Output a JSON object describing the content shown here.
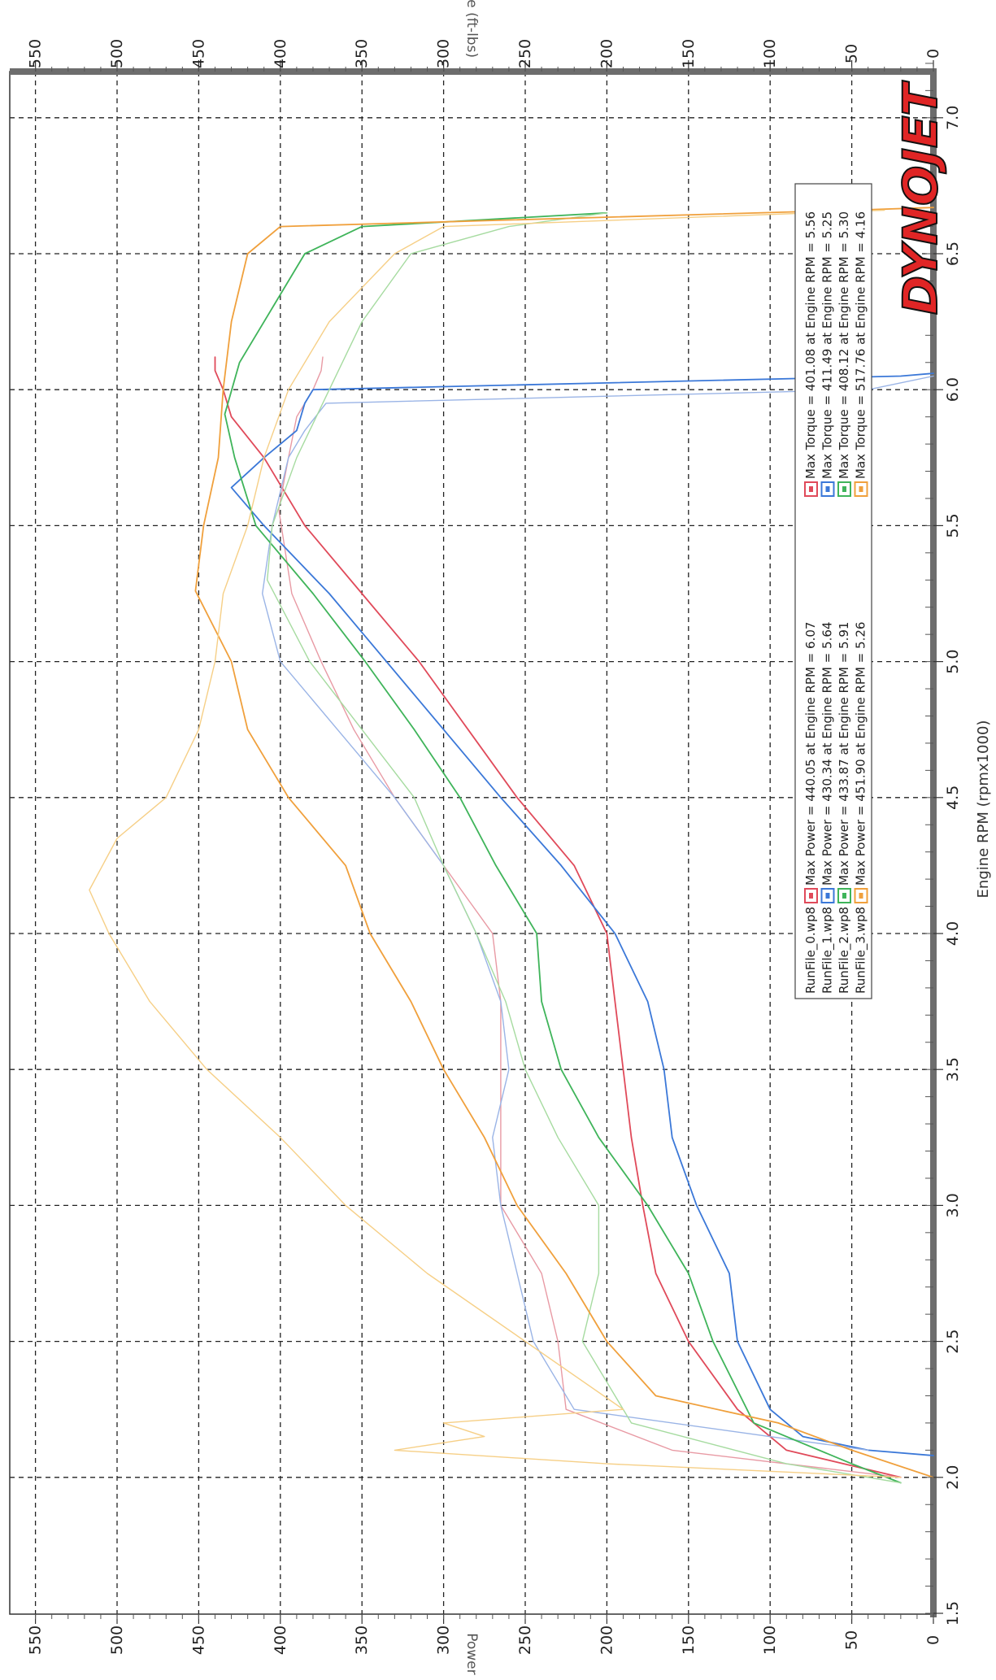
{
  "chart_data": {
    "type": "line",
    "title": "",
    "xlabel": "Engine RPM (rpmx1000)",
    "ylabel_top": "Torque (ft-lbs)",
    "ylabel_bottom": "Power (hp)",
    "x_range": [
      1.5,
      7.2
    ],
    "x_ticks": [
      "1.5",
      "2.0",
      "2.5",
      "3.0",
      "3.5",
      "4.0",
      "4.5",
      "5.0",
      "5.5",
      "6.0",
      "6.5",
      "7.0"
    ],
    "y_range": [
      0,
      560
    ],
    "y_ticks": [
      "0",
      "50",
      "100",
      "150",
      "200",
      "250",
      "300",
      "350",
      "400",
      "450",
      "500",
      "550"
    ],
    "grid": true,
    "orientation": "rotated 90° clockwise (x axis runs down the page)",
    "brand": "DYNOJET",
    "legend": {
      "placement": "right",
      "entries": [
        {
          "file": "RunFile_0.wp8",
          "color": "#e04a5a",
          "power": "Max Power = 440.05 at Engine RPM = 6.07",
          "torque": "Max Torque = 401.08 at Engine RPM = 5.56"
        },
        {
          "file": "RunFile_1.wp8",
          "color": "#3b78d8",
          "power": "Max Power = 430.34 at Engine RPM = 5.64",
          "torque": "Max Torque = 411.49 at Engine RPM = 5.25"
        },
        {
          "file": "RunFile_2.wp8",
          "color": "#3fb45a",
          "power": "Max Power = 433.87 at Engine RPM = 5.91",
          "torque": "Max Torque = 408.12 at Engine RPM = 5.30"
        },
        {
          "file": "RunFile_3.wp8",
          "color": "#f0a03c",
          "power": "Max Power = 451.90 at Engine RPM = 5.26",
          "torque": "Max Torque = 517.76 at Engine RPM = 4.16"
        }
      ]
    },
    "series": [
      {
        "name": "RunFile_0.wp8",
        "measure": "power",
        "color": "#e04a5a",
        "x": [
          2.0,
          2.1,
          2.25,
          2.5,
          2.75,
          3.0,
          3.25,
          3.5,
          3.75,
          4.0,
          4.25,
          4.5,
          4.75,
          5.0,
          5.25,
          5.5,
          5.75,
          5.9,
          6.0,
          6.07,
          6.12
        ],
        "y": [
          20,
          90,
          120,
          150,
          170,
          178,
          185,
          190,
          195,
          200,
          220,
          255,
          285,
          315,
          350,
          385,
          410,
          430,
          435,
          440,
          440
        ]
      },
      {
        "name": "RunFile_0.wp8",
        "measure": "torque",
        "color": "#e89aa4",
        "x": [
          2.0,
          2.1,
          2.25,
          2.5,
          2.75,
          3.0,
          3.25,
          3.5,
          3.75,
          4.0,
          4.25,
          4.5,
          4.75,
          5.0,
          5.25,
          5.56,
          5.75,
          5.9,
          6.0,
          6.07,
          6.12
        ],
        "y": [
          20,
          160,
          225,
          230,
          240,
          265,
          265,
          265,
          265,
          270,
          300,
          330,
          355,
          375,
          393,
          401,
          395,
          390,
          380,
          375,
          374
        ]
      },
      {
        "name": "RunFile_1.wp8",
        "measure": "power",
        "color": "#3b78d8",
        "x": [
          2.08,
          2.1,
          2.15,
          2.25,
          2.5,
          2.75,
          3.0,
          3.25,
          3.5,
          3.75,
          4.0,
          4.25,
          4.5,
          4.75,
          5.0,
          5.25,
          5.5,
          5.64,
          5.75,
          5.85,
          5.95,
          6.0,
          6.05,
          6.06
        ],
        "y": [
          0,
          40,
          80,
          100,
          120,
          125,
          145,
          160,
          165,
          175,
          195,
          228,
          265,
          300,
          335,
          370,
          410,
          430,
          410,
          390,
          385,
          380,
          20,
          0
        ]
      },
      {
        "name": "RunFile_1.wp8",
        "measure": "torque",
        "color": "#9ab4e6",
        "x": [
          2.1,
          2.25,
          2.5,
          2.75,
          3.0,
          3.25,
          3.5,
          3.75,
          4.0,
          4.25,
          4.5,
          4.75,
          5.0,
          5.25,
          5.5,
          5.75,
          5.85,
          5.95,
          6.0,
          6.05
        ],
        "y": [
          40,
          220,
          245,
          255,
          265,
          270,
          260,
          265,
          280,
          300,
          330,
          365,
          400,
          411,
          405,
          395,
          385,
          372,
          40,
          0
        ]
      },
      {
        "name": "RunFile_2.wp8",
        "measure": "power",
        "color": "#3fb45a",
        "x": [
          1.98,
          2.05,
          2.2,
          2.5,
          2.75,
          3.0,
          3.25,
          3.5,
          3.75,
          4.0,
          4.25,
          4.5,
          4.75,
          5.0,
          5.25,
          5.5,
          5.75,
          5.91,
          6.1,
          6.3,
          6.5,
          6.6,
          6.65
        ],
        "y": [
          20,
          50,
          110,
          135,
          150,
          175,
          205,
          228,
          240,
          243,
          268,
          290,
          318,
          348,
          380,
          415,
          428,
          434,
          425,
          405,
          385,
          350,
          200
        ]
      },
      {
        "name": "RunFile_2.wp8",
        "measure": "torque",
        "color": "#a6dba0",
        "x": [
          1.98,
          2.05,
          2.2,
          2.5,
          2.75,
          3.0,
          3.25,
          3.5,
          3.75,
          4.0,
          4.25,
          4.5,
          4.75,
          5.0,
          5.3,
          5.5,
          5.75,
          6.0,
          6.25,
          6.5,
          6.6,
          6.65
        ],
        "y": [
          20,
          90,
          185,
          215,
          205,
          205,
          230,
          250,
          262,
          280,
          300,
          318,
          350,
          382,
          408,
          405,
          390,
          370,
          350,
          320,
          260,
          200
        ]
      },
      {
        "name": "RunFile_3.wp8",
        "measure": "power",
        "color": "#f0a03c",
        "x": [
          2.0,
          2.1,
          2.2,
          2.3,
          2.5,
          2.75,
          3.0,
          3.25,
          3.5,
          3.75,
          4.0,
          4.25,
          4.5,
          4.75,
          5.0,
          5.26,
          5.5,
          5.75,
          6.0,
          6.25,
          6.5,
          6.6,
          6.66,
          6.67
        ],
        "y": [
          0,
          50,
          95,
          170,
          200,
          225,
          255,
          275,
          300,
          320,
          345,
          360,
          395,
          420,
          430,
          452,
          447,
          438,
          435,
          430,
          420,
          400,
          50,
          0
        ]
      },
      {
        "name": "RunFile_3.wp8",
        "measure": "torque",
        "color": "#f6cf86",
        "x": [
          2.0,
          2.05,
          2.1,
          2.15,
          2.2,
          2.25,
          2.5,
          2.75,
          3.0,
          3.25,
          3.5,
          3.75,
          4.0,
          4.16,
          4.35,
          4.5,
          4.75,
          5.0,
          5.25,
          5.5,
          5.75,
          6.0,
          6.25,
          6.5,
          6.6,
          6.66
        ],
        "y": [
          20,
          200,
          330,
          275,
          300,
          190,
          250,
          310,
          360,
          400,
          445,
          480,
          505,
          517,
          500,
          470,
          450,
          440,
          435,
          420,
          410,
          395,
          370,
          330,
          300,
          30
        ]
      }
    ]
  }
}
